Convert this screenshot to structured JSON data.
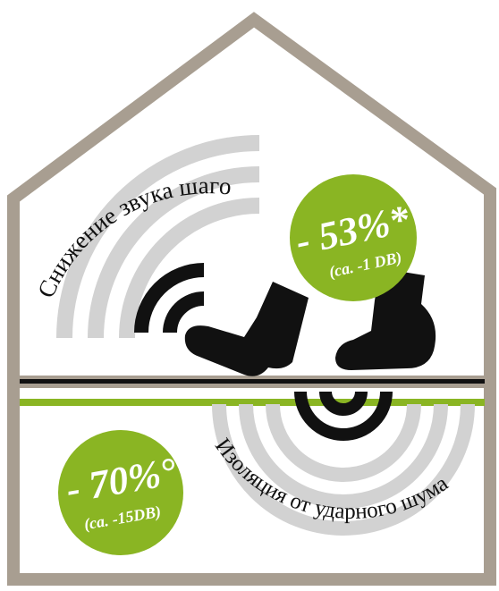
{
  "colors": {
    "house_frame": "#a89e91",
    "accent_green": "#8ab523",
    "wave_gray": "#d2d2d2",
    "ink": "#111111",
    "background": "#ffffff"
  },
  "upper": {
    "arc_label": "Снижение звука шагов",
    "badge_value": "- 53%*",
    "badge_note": "(ca. -1 DB)"
  },
  "lower": {
    "arc_label": "Изоляция от ударного шума",
    "badge_value": "- 70%°",
    "badge_note": "(ca. -15DB)"
  },
  "icons": {
    "left_boot": "boot-icon",
    "right_boot": "boot-icon",
    "upper_waves": "sound-waves-icon",
    "lower_waves": "impact-waves-icon"
  }
}
